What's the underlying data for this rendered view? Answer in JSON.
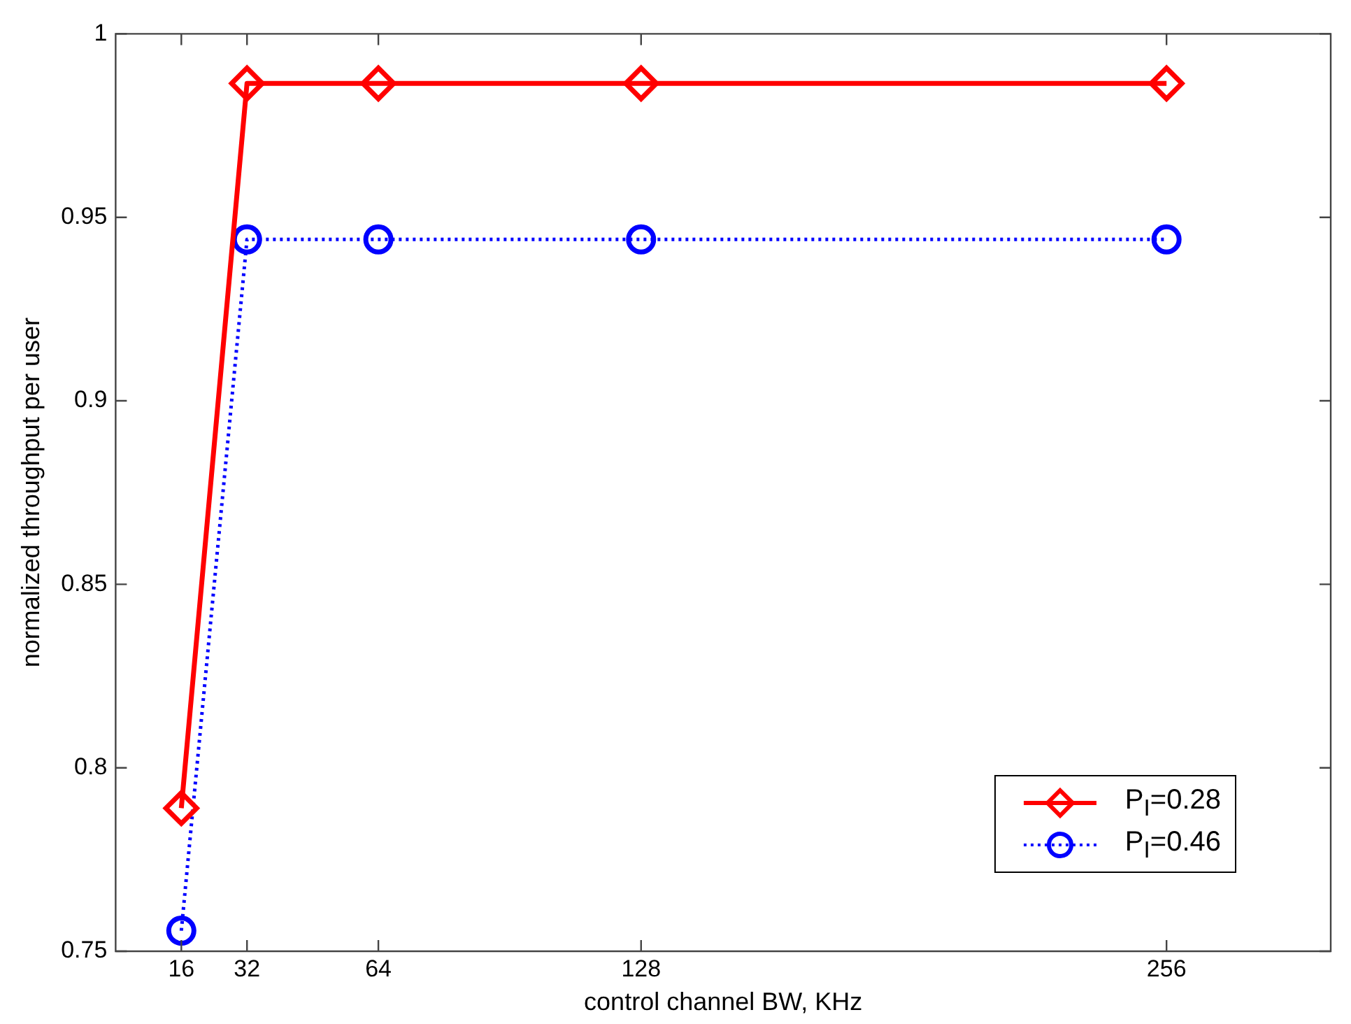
{
  "chart_data": {
    "type": "line",
    "xlabel": "control channel BW, KHz",
    "ylabel": "normalized throughput per user",
    "x": [
      16,
      32,
      64,
      128,
      256
    ],
    "series": [
      {
        "name": "P$_{I}$=0.28",
        "color": "#ff0000",
        "values": [
          0.789,
          0.9865,
          0.9865,
          0.9865,
          0.9865
        ],
        "marker": "diamond",
        "line_style": "solid"
      },
      {
        "name": "P$_{I}$=0.46",
        "color": "#0000ff",
        "values": [
          0.7556,
          0.944,
          0.944,
          0.944,
          0.944
        ],
        "marker": "circle",
        "line_style": "dotted"
      }
    ],
    "xlim": [
      0,
      296
    ],
    "xticks": [
      16,
      32,
      64,
      128,
      256
    ],
    "ylim": [
      0.75,
      1
    ],
    "yticks": [
      0.75,
      0.8,
      0.85,
      0.9,
      0.95,
      1
    ],
    "grid": false,
    "legend": "bottom right"
  }
}
